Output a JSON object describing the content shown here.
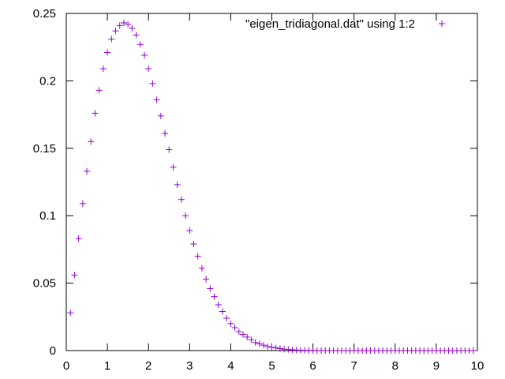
{
  "chart_data": {
    "type": "scatter",
    "title": "",
    "xlabel": "",
    "ylabel": "",
    "xlim": [
      0,
      10
    ],
    "ylim": [
      0,
      0.25
    ],
    "xticks": [
      0,
      1,
      2,
      3,
      4,
      5,
      6,
      7,
      8,
      9,
      10
    ],
    "yticks": [
      0,
      0.05,
      0.1,
      0.15,
      0.2,
      0.25
    ],
    "xtick_labels": [
      "0",
      "1",
      "2",
      "3",
      "4",
      "5",
      "6",
      "7",
      "8",
      "9",
      "10"
    ],
    "ytick_labels": [
      "0",
      "0.05",
      "0.1",
      "0.15",
      "0.2",
      "0.25"
    ],
    "grid": false,
    "legend_position": "top-right",
    "marker": "plus",
    "series": [
      {
        "name": "\"eigen_tridiagonal.dat\" using 1:2",
        "color": "#9400d3",
        "x": [
          0.1,
          0.2,
          0.3,
          0.4,
          0.5,
          0.6,
          0.7,
          0.8,
          0.9,
          1.0,
          1.1,
          1.2,
          1.3,
          1.4,
          1.5,
          1.6,
          1.7,
          1.8,
          1.9,
          2.0,
          2.1,
          2.2,
          2.3,
          2.4,
          2.5,
          2.6,
          2.7,
          2.8,
          2.9,
          3.0,
          3.1,
          3.2,
          3.3,
          3.4,
          3.5,
          3.6,
          3.7,
          3.8,
          3.9,
          4.0,
          4.1,
          4.2,
          4.3,
          4.4,
          4.5,
          4.6,
          4.7,
          4.8,
          4.9,
          5.0,
          5.1,
          5.2,
          5.3,
          5.4,
          5.5,
          5.6,
          5.7,
          5.8,
          5.9,
          6.0,
          6.1,
          6.2,
          6.3,
          6.4,
          6.5,
          6.6,
          6.7,
          6.8,
          6.9,
          7.0,
          7.1,
          7.2,
          7.3,
          7.4,
          7.5,
          7.6,
          7.7,
          7.8,
          7.9,
          8.0,
          8.1,
          8.2,
          8.3,
          8.4,
          8.5,
          8.6,
          8.7,
          8.8,
          8.9,
          9.0,
          9.1,
          9.2,
          9.3,
          9.4,
          9.5,
          9.6,
          9.7,
          9.8,
          9.9
        ],
        "y": [
          0.028,
          0.056,
          0.083,
          0.109,
          0.133,
          0.155,
          0.176,
          0.193,
          0.209,
          0.221,
          0.231,
          0.237,
          0.241,
          0.243,
          0.242,
          0.239,
          0.234,
          0.227,
          0.219,
          0.209,
          0.198,
          0.186,
          0.174,
          0.161,
          0.149,
          0.136,
          0.123,
          0.112,
          0.1,
          0.089,
          0.079,
          0.07,
          0.061,
          0.053,
          0.046,
          0.04,
          0.034,
          0.029,
          0.024,
          0.02,
          0.017,
          0.014,
          0.012,
          0.01,
          0.008,
          0.006,
          0.005,
          0.004,
          0.003,
          0.0025,
          0.002,
          0.0015,
          0.001,
          0.0008,
          0.0006,
          0.0004,
          0.0003,
          0.0002,
          0.0001,
          0.0001,
          0,
          0,
          0,
          0,
          0,
          0,
          0,
          0,
          0,
          0,
          0,
          0,
          0,
          0,
          0,
          0,
          0,
          0,
          0,
          0,
          0,
          0,
          0,
          0,
          0,
          0,
          0,
          0,
          0,
          0,
          0,
          0,
          0,
          0,
          0,
          0,
          0,
          0,
          0
        ]
      }
    ]
  }
}
